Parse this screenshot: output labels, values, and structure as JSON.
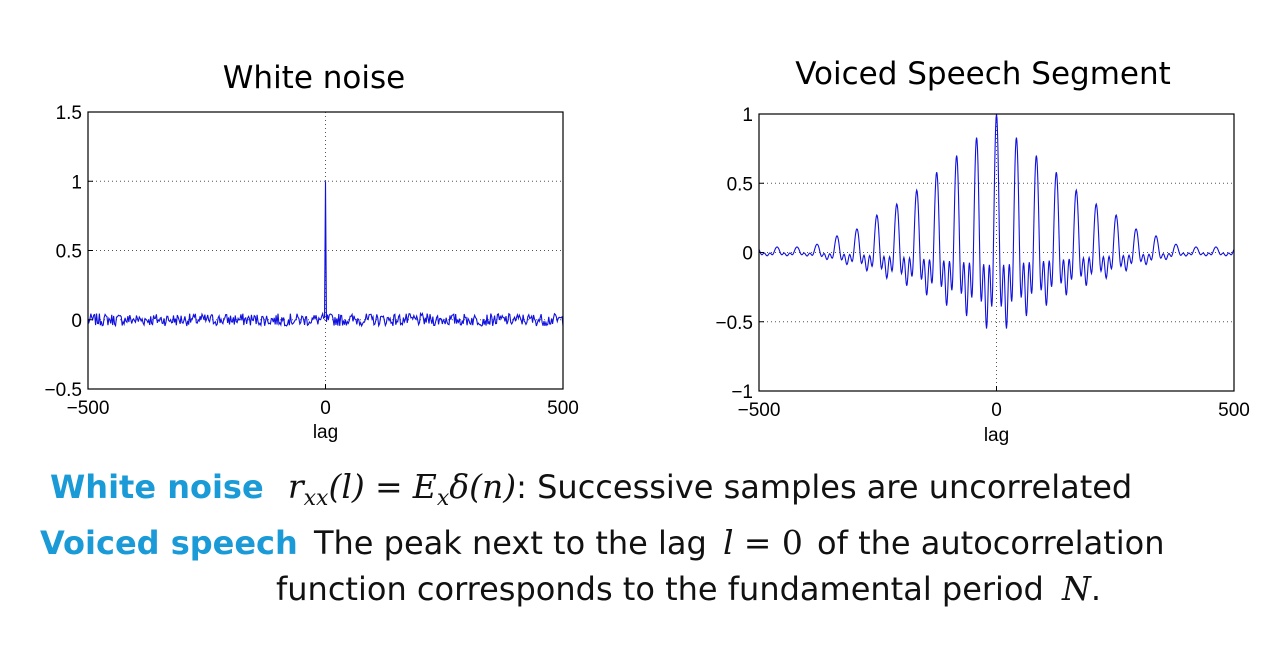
{
  "accent_color": "#1a9ad6",
  "line_color": "#1010e0",
  "chart_data": [
    {
      "type": "line",
      "title": "White noise",
      "xlabel": "lag",
      "ylabel": "",
      "xlim": [
        -500,
        500
      ],
      "ylim": [
        -0.5,
        1.5
      ],
      "xticks": [
        -500,
        0,
        500
      ],
      "xtick_labels": [
        "−500",
        "0",
        "500"
      ],
      "yticks": [
        -0.5,
        0,
        0.5,
        1,
        1.5
      ],
      "ytick_labels": [
        "−0.5",
        "0",
        "0.5",
        "1",
        "1.5"
      ],
      "grid": true,
      "series": [
        {
          "description": "autocorrelation of white noise: unit impulse at lag 0, small noise (about ±0.05) elsewhere",
          "peak_x": 0,
          "peak_y": 1.0,
          "noise_amplitude": 0.05
        }
      ]
    },
    {
      "type": "line",
      "title": "Voiced Speech Segment",
      "xlabel": "lag",
      "ylabel": "",
      "xlim": [
        -500,
        500
      ],
      "ylim": [
        -1,
        1
      ],
      "xticks": [
        -500,
        0,
        500
      ],
      "xtick_labels": [
        "−500",
        "0",
        "500"
      ],
      "yticks": [
        -1,
        -0.5,
        0,
        0.5,
        1
      ],
      "ytick_labels": [
        "−1",
        "−0.5",
        "0",
        "0.5",
        "1"
      ],
      "grid": true,
      "series": [
        {
          "description": "periodic autocorrelation of voiced speech, peaks decaying away from lag 0",
          "peaks": [
            {
              "x": 0,
              "y": 1.0
            },
            {
              "x": 42,
              "y": 0.83
            },
            {
              "x": 84,
              "y": 0.7
            },
            {
              "x": 126,
              "y": 0.58
            },
            {
              "x": 168,
              "y": 0.45
            },
            {
              "x": 210,
              "y": 0.35
            },
            {
              "x": 252,
              "y": 0.27
            },
            {
              "x": 294,
              "y": 0.17
            },
            {
              "x": 336,
              "y": 0.12
            }
          ],
          "min_y": -0.62
        }
      ]
    }
  ],
  "text": {
    "row1": {
      "keyword": "White noise",
      "formula_r": "r",
      "formula_r_sub": "xx",
      "formula_l": "(l)",
      "formula_eq": "=",
      "formula_E": "E",
      "formula_E_sub": "x",
      "formula_delta": "δ(n)",
      "rest": ": Successive samples are uncorrelated"
    },
    "row2": {
      "keyword": "Voiced speech",
      "text_a": "The peak next to the lag",
      "math_l": "l",
      "math_eq": "= 0",
      "text_b": "of the autocorrelation"
    },
    "row3": {
      "text_a": "function corresponds to the fundamental period",
      "math_N": "N",
      "period": "."
    }
  }
}
